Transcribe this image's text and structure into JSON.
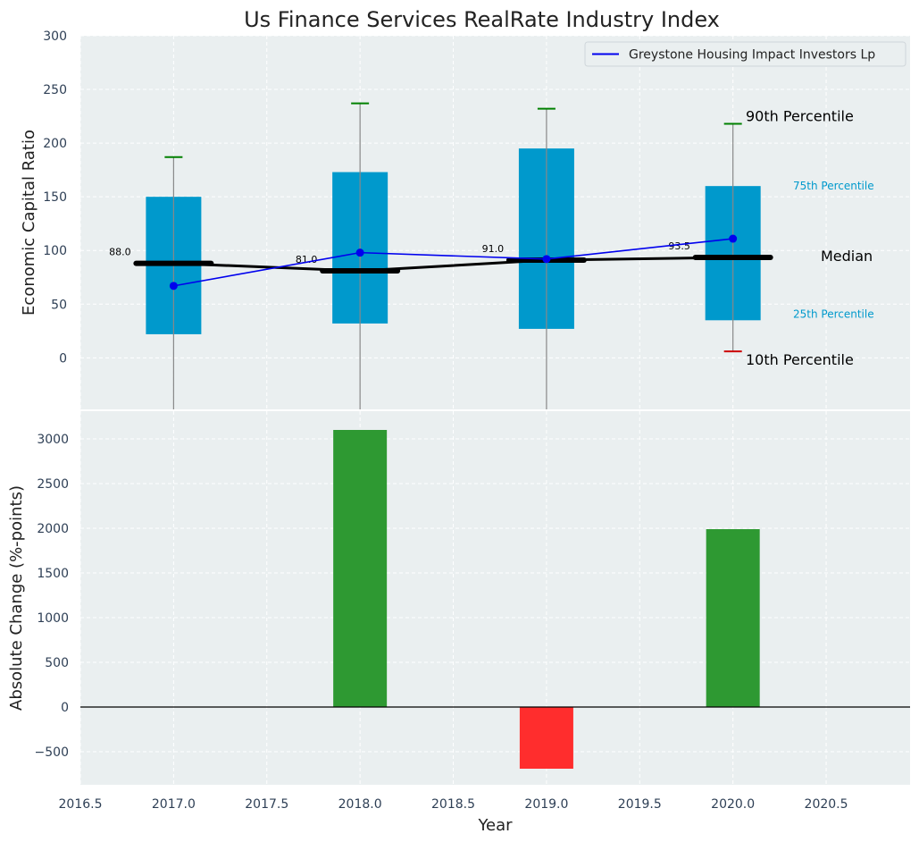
{
  "chart_data": [
    {
      "type": "box",
      "title": "Us Finance Services RealRate Industry Index",
      "xlabel": "",
      "ylabel": "Economic Capital Ratio",
      "ylim": [
        -48,
        300
      ],
      "yticks": [
        0,
        50,
        100,
        150,
        200,
        250,
        300
      ],
      "grid": true,
      "legend": {
        "position": "top-right",
        "entries": [
          "Greystone Housing Impact Investors Lp"
        ]
      },
      "boxes": [
        {
          "x": 2017,
          "p10": null,
          "p25": 22,
          "median": 88.0,
          "p75": 150,
          "p90": 187
        },
        {
          "x": 2018,
          "p10": null,
          "p25": 32,
          "median": 81.0,
          "p75": 173,
          "p90": 237
        },
        {
          "x": 2019,
          "p10": null,
          "p25": 27,
          "median": 91.0,
          "p75": 195,
          "p90": 232
        },
        {
          "x": 2020,
          "p10": 6,
          "p25": 35,
          "median": 93.5,
          "p75": 160,
          "p90": 218
        }
      ],
      "median_labels": [
        "88.0",
        "81.0",
        "91.0",
        "93.5"
      ],
      "series": [
        {
          "name": "Greystone Housing Impact Investors Lp",
          "x": [
            2017,
            2018,
            2019,
            2020
          ],
          "values": [
            67,
            98,
            92,
            111
          ],
          "color": "#0000ee"
        }
      ],
      "annotations": {
        "p90": "90th Percentile",
        "p75": "75th Percentile",
        "median": "Median",
        "p25": "25th Percentile",
        "p10": "10th Percentile"
      },
      "colors": {
        "box": "#0099cc",
        "median": "#000000",
        "p90_cap": "#008000",
        "p10_cap": "#cc0000",
        "whisker": "#888888"
      }
    },
    {
      "type": "bar",
      "xlabel": "Year",
      "ylabel": "Absolute Change (%-points)",
      "xlim": [
        2016.5,
        2020.95
      ],
      "xticks": [
        "2016.5",
        "2017.0",
        "2017.5",
        "2018.0",
        "2018.5",
        "2019.0",
        "2019.5",
        "2020.0",
        "2020.5"
      ],
      "ylim": [
        -870,
        3310
      ],
      "yticks": [
        -500,
        0,
        500,
        1000,
        1500,
        2000,
        2500,
        3000
      ],
      "x": [
        2018,
        2019,
        2020
      ],
      "values": [
        3100,
        -690,
        1990
      ],
      "colors": {
        "positive": "#2e9932",
        "negative": "#ff2d2d"
      },
      "grid": true
    }
  ]
}
